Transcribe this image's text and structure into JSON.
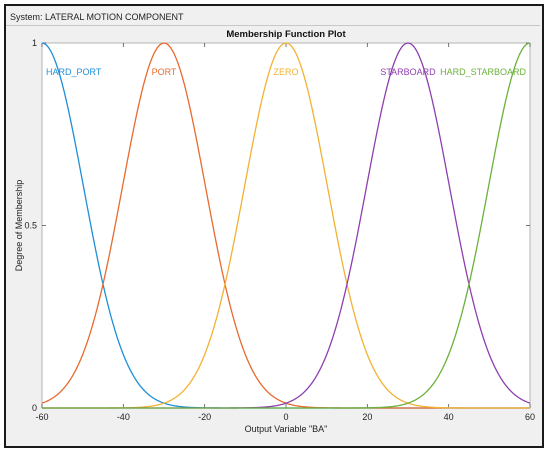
{
  "system_label": "System: LATERAL MOTION COMPONENT",
  "colors": {
    "hard_port": "#1f8fd6",
    "port": "#e86a2e",
    "zero": "#f2b233",
    "starboard": "#8e3fae",
    "hard_starboard": "#6bb13a",
    "frame": "#1a1a1a",
    "panel": "#f0f0f0"
  },
  "chart_data": {
    "type": "line",
    "title": "Membership Function Plot",
    "xlabel": "Output Variable \"BA\"",
    "ylabel": "Degree of Membership",
    "xlim": [
      -60,
      60
    ],
    "ylim": [
      0,
      1
    ],
    "x_ticks": [
      "-60",
      "-40",
      "-20",
      "0",
      "20",
      "40",
      "60"
    ],
    "x_tick_values": [
      -60,
      -40,
      -20,
      0,
      20,
      40,
      60
    ],
    "y_ticks": [
      "0",
      "0.5",
      "1"
    ],
    "y_tick_values": [
      0,
      0.5,
      1
    ],
    "grid": false,
    "series": [
      {
        "name": "HARD_PORT",
        "mf": "gaussian",
        "center": -60,
        "sigma": 10.2,
        "color": "#1f8fd6"
      },
      {
        "name": "PORT",
        "mf": "gaussian",
        "center": -30,
        "sigma": 10.2,
        "color": "#e86a2e"
      },
      {
        "name": "ZERO",
        "mf": "gaussian",
        "center": 0,
        "sigma": 10.2,
        "color": "#f2b233"
      },
      {
        "name": "STARBOARD",
        "mf": "gaussian",
        "center": 30,
        "sigma": 10.2,
        "color": "#8e3fae"
      },
      {
        "name": "HARD_STARBOARD",
        "mf": "gaussian",
        "center": 60,
        "sigma": 10.2,
        "color": "#6bb13a"
      }
    ]
  }
}
